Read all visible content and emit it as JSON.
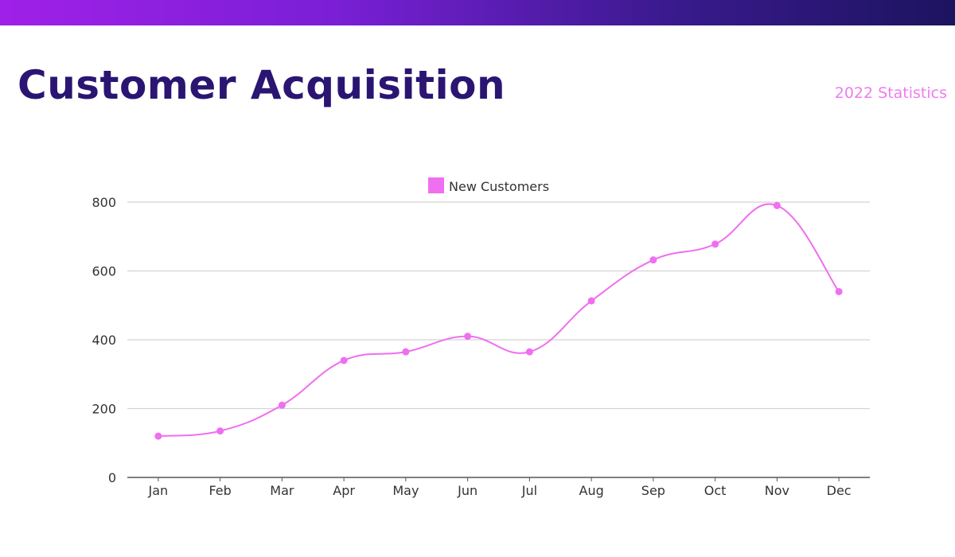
{
  "header": {
    "title": "Customer Acquisition",
    "subtitle": "2022 Statistics"
  },
  "colors": {
    "banner_start": "#a020e8",
    "banner_end": "#1c145f",
    "title": "#2a1572",
    "subtitle": "#ee7cf0",
    "series": "#f06ef0",
    "grid": "#d3d3d3"
  },
  "chart_data": {
    "type": "line",
    "title": "",
    "xlabel": "",
    "ylabel": "",
    "categories": [
      "Jan",
      "Feb",
      "Mar",
      "Apr",
      "May",
      "Jun",
      "Jul",
      "Aug",
      "Sep",
      "Oct",
      "Nov",
      "Dec"
    ],
    "series": [
      {
        "name": "New Customers",
        "values": [
          120,
          135,
          210,
          340,
          365,
          410,
          365,
          513,
          632,
          678,
          790,
          540
        ]
      }
    ],
    "ylim": [
      0,
      800
    ],
    "yticks": [
      0,
      200,
      400,
      600,
      800
    ],
    "grid": true,
    "legend": "top-center",
    "smooth": true
  }
}
